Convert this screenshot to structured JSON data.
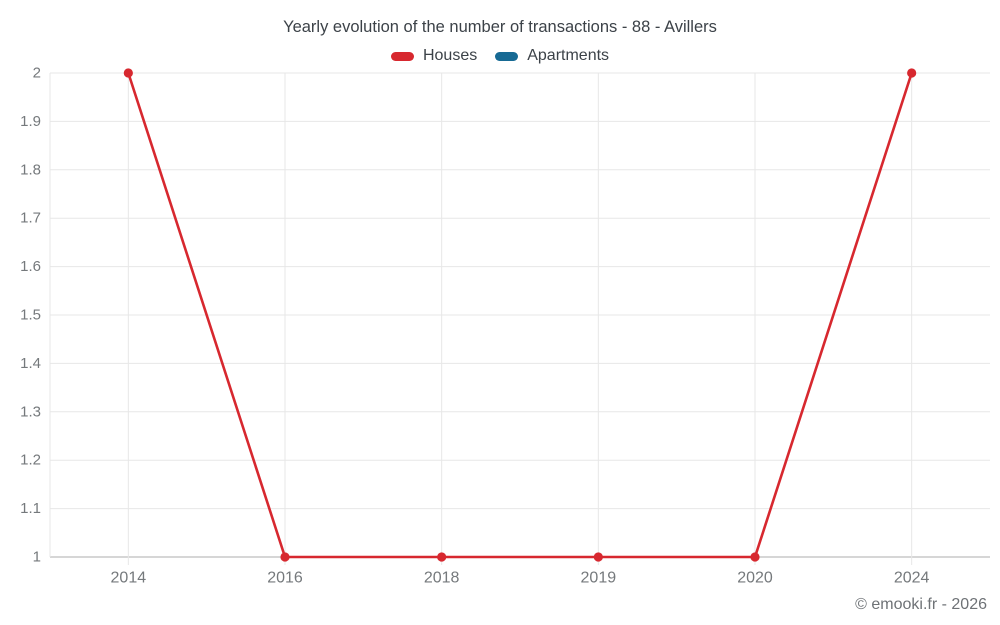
{
  "page": {
    "title": "Yearly evolution of the number of transactions - 88 - Avillers",
    "footer": "© emooki.fr - 2026"
  },
  "colors": {
    "houses": "#d7282f",
    "apartments": "#176a94",
    "gridline": "#e7e7e7",
    "axis_line": "#c9c9c9",
    "title_text": "#3c4248",
    "axis_text": "#75797c",
    "footer_text": "#6e7276",
    "background": "#ffffff"
  },
  "chart_data": {
    "type": "line",
    "title": "Yearly evolution of the number of transactions - 88 - Avillers",
    "categories": [
      "2014",
      "2016",
      "2018",
      "2019",
      "2020",
      "2024"
    ],
    "series": [
      {
        "name": "Houses",
        "color": "#d7282f",
        "values": [
          2,
          1,
          1,
          1,
          1,
          2
        ]
      },
      {
        "name": "Apartments",
        "color": "#176a94",
        "values": []
      }
    ],
    "xlabel": "",
    "ylabel": "",
    "ylim": [
      1,
      2
    ],
    "ytick_step": 0.1,
    "ytick_labels": [
      "1",
      "1.1",
      "1.2",
      "1.3",
      "1.4",
      "1.5",
      "1.6",
      "1.7",
      "1.8",
      "1.9",
      "2"
    ],
    "grid": true,
    "legend_position": "top"
  }
}
